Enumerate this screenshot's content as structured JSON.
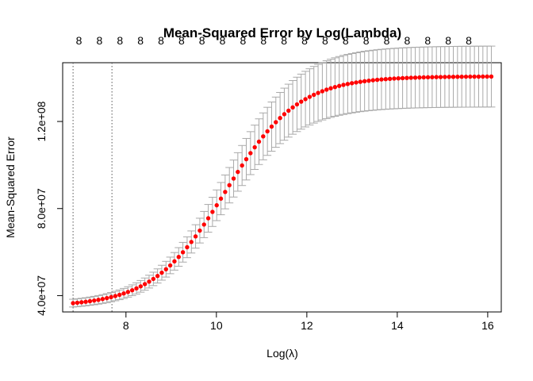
{
  "chart_data": {
    "type": "scatter",
    "title": "Mean-Squared Error by Log(Lambda)",
    "xlabel": "Log(λ)",
    "ylabel": "Mean-Squared Error",
    "xlim": [
      6.6,
      16.3
    ],
    "ylim": [
      32500000,
      147000000
    ],
    "x_ticks": [
      8,
      10,
      12,
      14,
      16
    ],
    "x_tick_labels": [
      "8",
      "10",
      "12",
      "14",
      "16"
    ],
    "y_ticks": [
      40000000,
      80000000,
      120000000
    ],
    "y_tick_labels": [
      "4.0e+07",
      "8.0e+07",
      "1.2e+08"
    ],
    "top_axis_labels": [
      "8",
      "8",
      "8",
      "8",
      "8",
      "8",
      "8",
      "8",
      "8",
      "8",
      "8",
      "8",
      "8",
      "8",
      "8",
      "8",
      "8",
      "8",
      "8",
      "8"
    ],
    "vertical_reference_lines": [
      6.83,
      7.69
    ],
    "curve": {
      "x_start": 6.83,
      "x_end": 16.08,
      "n_points": 100,
      "y_min": 35000000,
      "y_max": 140700000,
      "midpoint": 10.2,
      "scale": 0.8,
      "error_at_min": 1600000,
      "error_at_max": 14000000
    },
    "colors": {
      "points": "#ff0000",
      "error_bars": "#a9a9a9",
      "axes": "#000000",
      "reference_lines": "#555555"
    }
  }
}
